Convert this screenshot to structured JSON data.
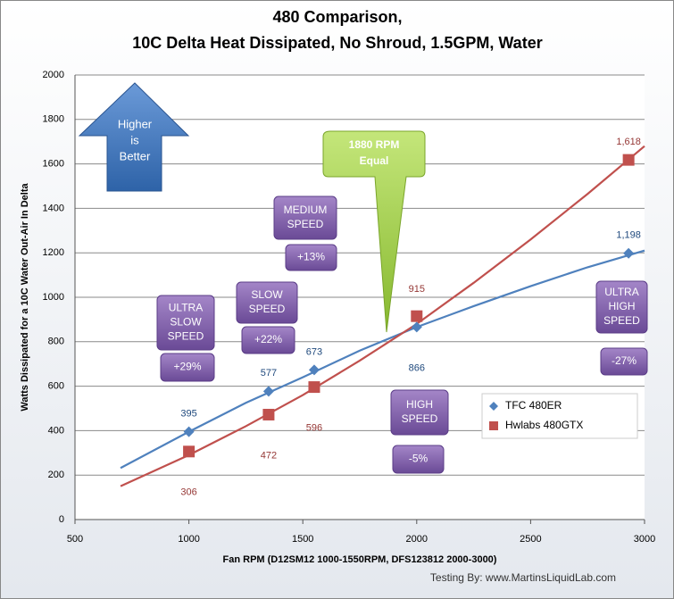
{
  "chart_data": {
    "type": "line",
    "title": [
      "480 Comparison,",
      "10C Delta Heat Dissipated, No Shroud, 1.5GPM, Water"
    ],
    "x_label": "Fan RPM (D12SM12 1000-1550RPM, DFS123812 2000-3000)",
    "y_label": "Watts Dissipated  for a 10C Water Out-Air In Delta",
    "xlim": [
      500,
      3000
    ],
    "xticks": [
      500,
      1000,
      1500,
      2000,
      2500,
      3000
    ],
    "ylim": [
      0,
      2000
    ],
    "yticks": [
      0,
      200,
      400,
      600,
      800,
      1000,
      1200,
      1400,
      1600,
      1800,
      2000
    ],
    "grid": true,
    "legend_position": "right",
    "series": [
      {
        "name": "TFC 480ER",
        "color": "#4f81bd",
        "marker": "diamond",
        "x": [
          1000,
          1350,
          1550,
          2000,
          2930
        ],
        "values": [
          395,
          577,
          673,
          866,
          1198
        ],
        "value_labels": [
          "395",
          "577",
          "673",
          "866",
          "1,198"
        ],
        "trend": {
          "x": [
            700,
            1000,
            1250,
            1500,
            1750,
            2000,
            2250,
            2500,
            2750,
            3000
          ],
          "values": [
            232,
            395,
            525,
            640,
            760,
            866,
            960,
            1050,
            1135,
            1210
          ]
        }
      },
      {
        "name": "Hwlabs 480GTX",
        "color": "#c0504d",
        "marker": "square",
        "x": [
          1000,
          1350,
          1550,
          2000,
          2930
        ],
        "values": [
          306,
          472,
          596,
          915,
          1618
        ],
        "value_labels": [
          "306",
          "472",
          "596",
          "915",
          "1,618"
        ],
        "trend": {
          "x": [
            700,
            1000,
            1250,
            1500,
            1750,
            2000,
            2250,
            2500,
            2750,
            3000
          ],
          "values": [
            150,
            290,
            420,
            560,
            715,
            880,
            1065,
            1260,
            1465,
            1680
          ]
        }
      }
    ],
    "annotations": [
      {
        "text": [
          "Higher",
          "is",
          "Better"
        ]
      },
      {
        "text": [
          "1880 RPM",
          "Equal"
        ]
      },
      {
        "text": [
          "MEDIUM",
          "SPEED"
        ]
      },
      {
        "text": [
          "+13%"
        ]
      },
      {
        "text": [
          "SLOW",
          "SPEED"
        ]
      },
      {
        "text": [
          "+22%"
        ]
      },
      {
        "text": [
          "ULTRA",
          "SLOW",
          "SPEED"
        ]
      },
      {
        "text": [
          "+29%"
        ]
      },
      {
        "text": [
          "HIGH",
          "SPEED"
        ]
      },
      {
        "text": [
          "-5%"
        ]
      },
      {
        "text": [
          "ULTRA",
          "HIGH",
          "SPEED"
        ]
      },
      {
        "text": [
          "-27%"
        ]
      }
    ],
    "footer": "Testing By: www.MartinsLiquidLab.com"
  }
}
